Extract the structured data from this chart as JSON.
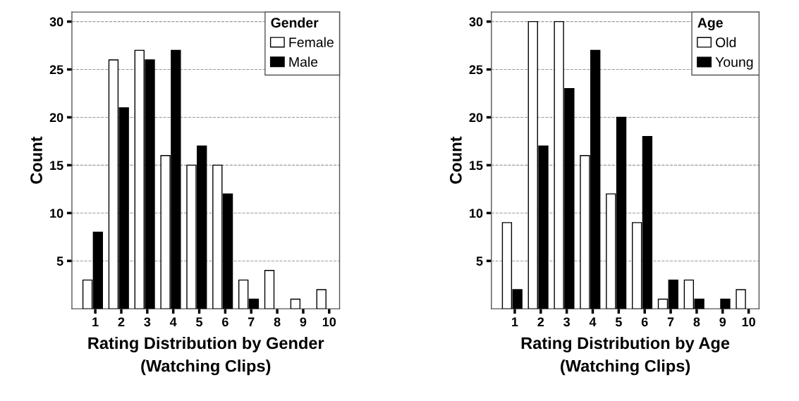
{
  "chart_data": [
    {
      "type": "bar",
      "xlabel": "Rating Distribution by Gender\n(Watching Clips)",
      "ylabel": "Count",
      "legend_title": "Gender",
      "legend": "top right",
      "grid": "y",
      "categories": [
        "1",
        "2",
        "3",
        "4",
        "5",
        "6",
        "7",
        "8",
        "9",
        "10"
      ],
      "series": [
        {
          "name": "Female",
          "color": "#ffffff",
          "values": [
            3,
            26,
            27,
            16,
            15,
            15,
            3,
            4,
            1,
            2
          ]
        },
        {
          "name": "Male",
          "color": "#000000",
          "values": [
            8,
            21,
            26,
            27,
            17,
            12,
            1,
            null,
            null,
            null
          ]
        }
      ],
      "ylim": [
        0,
        31
      ],
      "yticks": [
        5,
        10,
        15,
        20,
        25,
        30
      ]
    },
    {
      "type": "bar",
      "xlabel": "Rating Distribution by Age\n(Watching Clips)",
      "ylabel": "Count",
      "legend_title": "Age",
      "legend": "top right",
      "grid": "y",
      "categories": [
        "1",
        "2",
        "3",
        "4",
        "5",
        "6",
        "7",
        "8",
        "9",
        "10"
      ],
      "series": [
        {
          "name": "Old",
          "color": "#ffffff",
          "values": [
            9,
            30,
            30,
            16,
            12,
            9,
            1,
            3,
            null,
            2
          ]
        },
        {
          "name": "Young",
          "color": "#000000",
          "values": [
            2,
            17,
            23,
            27,
            20,
            18,
            3,
            1,
            1,
            null
          ]
        }
      ],
      "ylim": [
        0,
        31
      ],
      "yticks": [
        5,
        10,
        15,
        20,
        25,
        30
      ]
    }
  ]
}
